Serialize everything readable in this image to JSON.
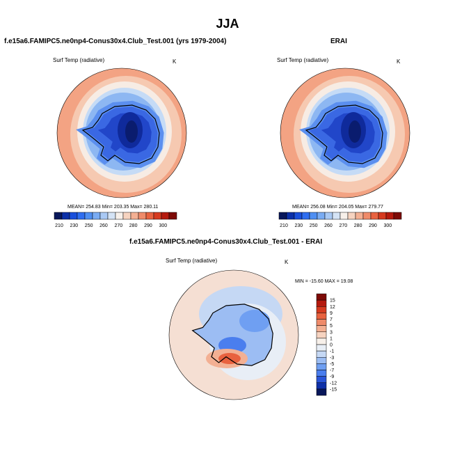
{
  "title": "JJA",
  "panels": [
    {
      "title": "f.e15a6.FAMIPC5.ne0np4-Conus30x4.Club_Test.001 (yrs 1979-2004)",
      "variable": "Surf Temp (radiative)",
      "units": "K",
      "stats": "MEAN= 254.83  Min= 203.35  Max= 280.11"
    },
    {
      "title": "ERAI",
      "variable": "Surf Temp (radiative)",
      "units": "K",
      "stats": "MEAN= 256.08  Min= 204.05  Max= 279.77"
    },
    {
      "title": "f.e15a6.FAMIPC5.ne0np4-Conus30x4.Club_Test.001 - ERAI",
      "variable": "Surf Temp (radiative)",
      "units": "K",
      "stats": "MIN = -15.60 MAX =  19.08"
    }
  ],
  "colorbar_abs": {
    "labels": [
      "210",
      "230",
      "250",
      "260",
      "270",
      "280",
      "290",
      "300"
    ],
    "colors": [
      "#08175a",
      "#0b2fa8",
      "#1a4fdb",
      "#2f6ef0",
      "#4f8ff2",
      "#7aacf3",
      "#a9c9f4",
      "#d4e3f5",
      "#f7f0ea",
      "#f6d3c0",
      "#f3b093",
      "#ef8b6a",
      "#e8623f",
      "#d63a1f",
      "#b51a0e",
      "#7d0a06"
    ]
  },
  "colorbar_diff": {
    "labels": [
      "15",
      "12",
      "9",
      "7",
      "5",
      "3",
      "1",
      "0",
      "-1",
      "-3",
      "-5",
      "-7",
      "-9",
      "-12",
      "-15"
    ],
    "colors": [
      "#7d0a06",
      "#b51a0e",
      "#d63a1f",
      "#e8623f",
      "#ef8b6a",
      "#f3b093",
      "#f6d3c0",
      "#f7f0ea",
      "#e8eef6",
      "#c5d8f4",
      "#9cbdf3",
      "#6f9ff2",
      "#4a7eee",
      "#2a55d8",
      "#0f30a8",
      "#08175a"
    ]
  },
  "map_colors": {
    "warm_outer": "#f3a383",
    "warm_mid": "#f6c9b1",
    "neutral": "#f7ece4",
    "cool_1": "#c5dbf6",
    "cool_2": "#8db7f2",
    "cool_3": "#5b8fef",
    "cool_4": "#3a68e3",
    "cool_5": "#2146c9",
    "cool_6": "#0f2a9b",
    "cool_7": "#0a1c6e",
    "coast": "#000000"
  }
}
